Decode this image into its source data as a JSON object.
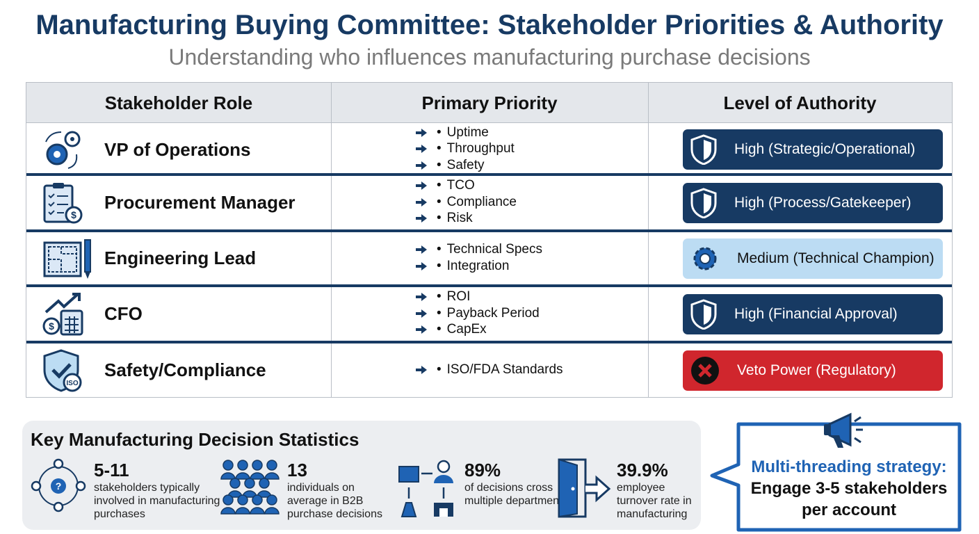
{
  "header": {
    "title": "Manufacturing Buying Committee: Stakeholder Priorities & Authority",
    "subtitle": "Understanding who influences manufacturing purchase decisions"
  },
  "table": {
    "columns": [
      "Stakeholder Role",
      "Primary Priority",
      "Level of Authority"
    ],
    "rows": [
      {
        "role": "VP of Operations",
        "priorities": [
          "Uptime",
          "Throughput",
          "Safety"
        ],
        "authority": "High (Strategic/Operational)",
        "badge_color": "#173a63",
        "badge_text_color": "#ffffff"
      },
      {
        "role": "Procurement Manager",
        "priorities": [
          "TCO",
          "Compliance",
          "Risk"
        ],
        "authority": "High (Process/Gatekeeper)",
        "badge_color": "#173a63",
        "badge_text_color": "#ffffff"
      },
      {
        "role": "Engineering Lead",
        "priorities": [
          "Technical Specs",
          "Integration"
        ],
        "authority": "Medium (Technical Champion)",
        "badge_color": "#bcdcf3",
        "badge_text_color": "#111111"
      },
      {
        "role": "CFO",
        "priorities": [
          "ROI",
          "Payback Period",
          "CapEx"
        ],
        "authority": "High (Financial Approval)",
        "badge_color": "#173a63",
        "badge_text_color": "#ffffff"
      },
      {
        "role": "Safety/Compliance",
        "priorities": [
          "ISO/FDA Standards"
        ],
        "authority": "Veto Power (Regulatory)",
        "badge_color": "#d0262d",
        "badge_text_color": "#ffffff"
      }
    ]
  },
  "statistics": {
    "title": "Key Manufacturing Decision Statistics",
    "items": [
      {
        "value": "5-11",
        "label": "stakeholders typically involved in manufacturing purchases"
      },
      {
        "value": "13",
        "label": "individuals on average in B2B purchase decisions"
      },
      {
        "value": "89%",
        "label": "of decisions cross multiple departments"
      },
      {
        "value": "39.9%",
        "label": "employee turnover rate in manufacturing"
      }
    ]
  },
  "callout": {
    "heading": "Multi-threading strategy:",
    "text": "Engage 3-5 stakeholders per account"
  }
}
